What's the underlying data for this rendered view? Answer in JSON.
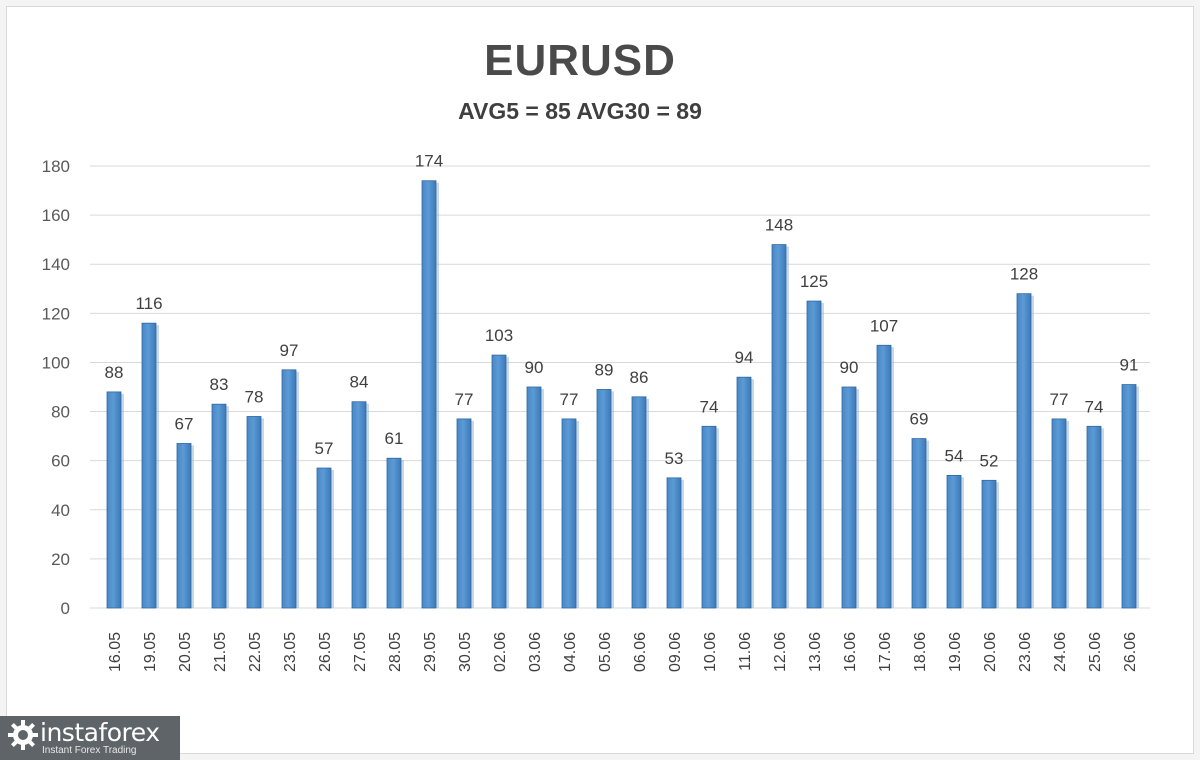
{
  "chart_data": {
    "type": "bar",
    "title": "EURUSD",
    "subtitle": "AVG5 = 85 AVG30 = 89",
    "xlabel": "",
    "ylabel": "",
    "ylim": [
      0,
      180
    ],
    "yticks": [
      0,
      20,
      40,
      60,
      80,
      100,
      120,
      140,
      160,
      180
    ],
    "grid": true,
    "legend": "none",
    "bar_color": "#5b9bd5",
    "categories": [
      "16.05",
      "19.05",
      "20.05",
      "21.05",
      "22.05",
      "23.05",
      "26.05",
      "27.05",
      "28.05",
      "29.05",
      "30.05",
      "02.06",
      "03.06",
      "04.06",
      "05.06",
      "06.06",
      "09.06",
      "10.06",
      "11.06",
      "12.06",
      "13.06",
      "16.06",
      "17.06",
      "18.06",
      "19.06",
      "20.06",
      "23.06",
      "24.06",
      "25.06",
      "26.06"
    ],
    "values": [
      88,
      116,
      67,
      83,
      78,
      97,
      57,
      84,
      61,
      174,
      77,
      103,
      90,
      77,
      89,
      86,
      53,
      74,
      94,
      148,
      125,
      90,
      107,
      69,
      54,
      52,
      128,
      77,
      74,
      91
    ]
  },
  "watermark": {
    "name": "instaforex",
    "tagline": "Instant Forex Trading"
  }
}
